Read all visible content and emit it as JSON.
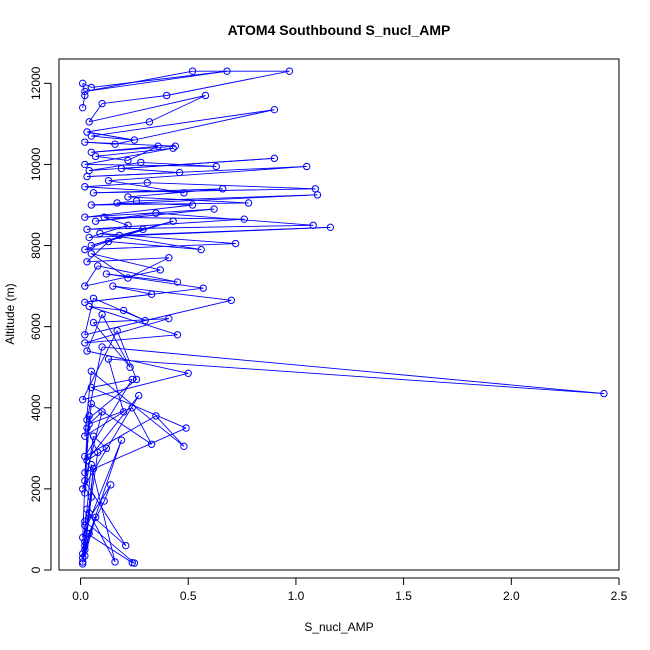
{
  "chart_data": {
    "type": "line",
    "title": "ATOM4 Southbound S_nucl_AMP",
    "xlabel": "S_nucl_AMP",
    "ylabel": "Altitude (m)",
    "xlim": [
      -0.1,
      2.5
    ],
    "ylim": [
      0,
      12600
    ],
    "xticks": [
      0.0,
      0.5,
      1.0,
      1.5,
      2.0,
      2.5
    ],
    "xtick_labels": [
      "0.0",
      "0.5",
      "1.0",
      "1.5",
      "2.0",
      "2.5"
    ],
    "yticks": [
      0,
      2000,
      4000,
      6000,
      8000,
      10000,
      12000
    ],
    "ytick_labels": [
      "0",
      "2000",
      "4000",
      "6000",
      "8000",
      "10000",
      "12000"
    ],
    "grid": false,
    "legend": "none",
    "marker": "open-circle",
    "series": [
      {
        "color": "#0000ff",
        "x": [
          0.01,
          0.02,
          0.01,
          0.04,
          0.02,
          0.07,
          0.02,
          0.05,
          0.01,
          0.02,
          0.14,
          0.11,
          0.02,
          0.06,
          0.03,
          0.24,
          0.25,
          0.02,
          0.03,
          0.16,
          0.05,
          0.01,
          0.19,
          0.01,
          0.03,
          0.08,
          0.04,
          0.21,
          0.02,
          0.04,
          0.02,
          0.06,
          0.12,
          0.03,
          0.27,
          0.01,
          0.1,
          0.04,
          0.24,
          0.33,
          0.05,
          0.02,
          0.49,
          0.05,
          0.24,
          0.02,
          0.35,
          0.48,
          0.05,
          0.02,
          0.2,
          0.13,
          2.43,
          0.1,
          0.03,
          0.26,
          0.17,
          0.01,
          0.5,
          0.03,
          0.1,
          0.23,
          0.06,
          0.41,
          0.02,
          0.45,
          0.04,
          0.2,
          0.3,
          0.06,
          0.02,
          0.7,
          0.15,
          0.33,
          0.02,
          0.57,
          0.12,
          0.45,
          0.08,
          0.02,
          0.37,
          0.05,
          0.22,
          0.41,
          0.03,
          0.13,
          0.56,
          0.09,
          0.72,
          0.02,
          0.29,
          0.05,
          0.43,
          0.18,
          1.16,
          0.04,
          0.22,
          0.11,
          0.76,
          0.03,
          1.08,
          0.35,
          0.07,
          0.62,
          0.02,
          0.52,
          0.17,
          0.26,
          1.1,
          0.05,
          0.78,
          0.22,
          0.66,
          0.06,
          1.09,
          0.31,
          0.02,
          0.48,
          0.13,
          1.05,
          0.03,
          0.46,
          0.19,
          0.9,
          0.04,
          0.28,
          0.63,
          0.02,
          0.43,
          0.07,
          0.22,
          0.36,
          0.05,
          0.44,
          0.02,
          0.16,
          0.9,
          0.05,
          0.25,
          0.03,
          0.32,
          0.58,
          0.04,
          0.1,
          0.4,
          0.97,
          0.52,
          0.02,
          0.68,
          0.05,
          0.01,
          0.02,
          0.01
        ],
        "y": [
          150,
          600,
          200,
          900,
          350,
          1300,
          500,
          1800,
          300,
          1100,
          2100,
          1700,
          700,
          2500,
          900,
          180,
          170,
          1200,
          1500,
          200,
          2600,
          400,
          3200,
          800,
          3500,
          2900,
          1400,
          600,
          2200,
          3800,
          1900,
          3300,
          3000,
          2700,
          4300,
          2000,
          3900,
          3600,
          4000,
          3100,
          4100,
          2400,
          3500,
          4500,
          4700,
          2800,
          3800,
          3050,
          4900,
          3300,
          3900,
          5200,
          4350,
          5500,
          3700,
          4700,
          5900,
          4200,
          4850,
          5400,
          6300,
          5000,
          6100,
          6200,
          5600,
          5800,
          6500,
          6400,
          6150,
          6700,
          5800,
          6650,
          7000,
          6800,
          6600,
          6950,
          7300,
          7100,
          7500,
          7000,
          7400,
          7800,
          7200,
          7700,
          7600,
          8100,
          7900,
          8300,
          8050,
          7900,
          8400,
          8000,
          8600,
          8250,
          8450,
          8200,
          8500,
          8700,
          8650,
          8400,
          8500,
          8800,
          8600,
          8900,
          8700,
          9000,
          9050,
          9100,
          9250,
          9000,
          9050,
          9200,
          9400,
          9300,
          9400,
          9550,
          9450,
          9300,
          9600,
          9950,
          9700,
          9800,
          9900,
          10150,
          9850,
          10050,
          9950,
          10000,
          10400,
          10200,
          10100,
          10450,
          10300,
          10450,
          10550,
          10500,
          11350,
          10700,
          10600,
          10800,
          11050,
          11700,
          11050,
          11500,
          11700,
          12300,
          12300,
          11800,
          12300,
          11900,
          12000,
          11700,
          11400
        ]
      }
    ]
  }
}
